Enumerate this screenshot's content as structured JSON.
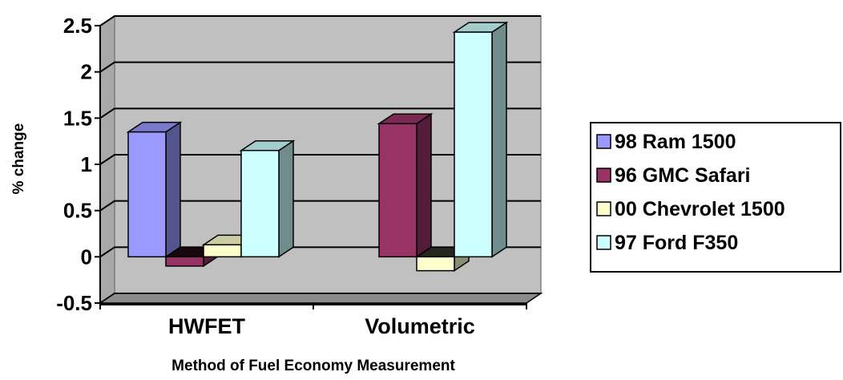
{
  "chart_data": {
    "type": "bar",
    "style": "3d-clustered-column",
    "categories": [
      "HWFET",
      "Volumetric"
    ],
    "series": [
      {
        "name": "98 Ram 1500",
        "color": "#9999ff",
        "values": [
          1.35,
          null
        ]
      },
      {
        "name": "96 GMC Safari",
        "color": "#993366",
        "values": [
          -0.1,
          1.44
        ]
      },
      {
        "name": "00 Chevrolet 1500",
        "color": "#ffffcc",
        "values": [
          0.13,
          -0.15
        ]
      },
      {
        "name": "97 Ford F350",
        "color": "#ccffff",
        "values": [
          1.15,
          2.43
        ]
      }
    ],
    "yticks": [
      "-0.5",
      "0",
      "0.5",
      "1",
      "1.5",
      "2",
      "2.5"
    ],
    "ylim": [
      -0.5,
      2.5
    ],
    "xlabel": "Method of Fuel Economy Measurement",
    "ylabel": "% change",
    "grid": true,
    "legend_position": "right",
    "wall_color": "#c0c0c0"
  }
}
